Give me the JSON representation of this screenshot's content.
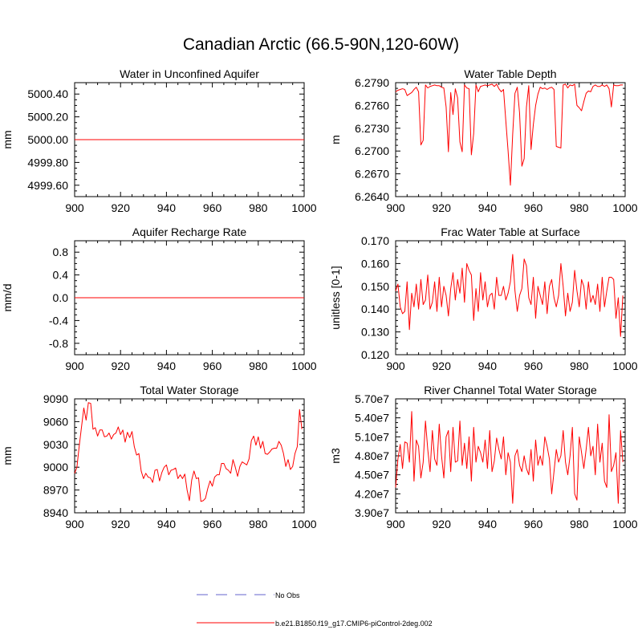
{
  "figure": {
    "title": "Canadian Arctic (66.5-90N,120-60W)"
  },
  "colors": {
    "series": "#ff0000",
    "obs": "#9999dd",
    "axis": "#000000"
  },
  "legend": {
    "items": [
      {
        "label": "No Obs",
        "style": "dashed",
        "color": "#9999dd"
      },
      {
        "label": "b.e21.B1850.f19_g17.CMIP6-piControl-2deg.002",
        "style": "solid",
        "color": "#ff0000"
      }
    ]
  },
  "chart_data": [
    {
      "type": "line",
      "title": "Water in Unconfined Aquifer",
      "ylabel": "mm",
      "xlabel": "",
      "xlim": [
        900,
        1000
      ],
      "ylim": [
        4999.5,
        5000.5
      ],
      "xticks": [
        "900",
        "920",
        "940",
        "960",
        "980",
        "1000"
      ],
      "yticks": [
        {
          "v": 4999.6,
          "label": "4999.60"
        },
        {
          "v": 4999.8,
          "label": "4999.80"
        },
        {
          "v": 5000.0,
          "label": "5000.00"
        },
        {
          "v": 5000.2,
          "label": "5000.20"
        },
        {
          "v": 5000.4,
          "label": "5000.40"
        }
      ],
      "series": [
        {
          "name": "b.e21.B1850.f19_g17.CMIP6-piControl-2deg.002",
          "x0": 900,
          "values": [
            5000,
            5000
          ],
          "x": [
            900,
            1000
          ]
        }
      ]
    },
    {
      "type": "line",
      "title": "Water Table Depth",
      "ylabel": "m",
      "xlabel": "",
      "xlim": [
        900,
        1000
      ],
      "ylim": [
        6.264,
        6.279
      ],
      "xticks": [
        "900",
        "920",
        "940",
        "960",
        "980",
        "1000"
      ],
      "yticks": [
        {
          "v": 6.264,
          "label": "6.2640"
        },
        {
          "v": 6.267,
          "label": "6.2670"
        },
        {
          "v": 6.27,
          "label": "6.2700"
        },
        {
          "v": 6.273,
          "label": "6.2730"
        },
        {
          "v": 6.276,
          "label": "6.2760"
        },
        {
          "v": 6.279,
          "label": "6.2790"
        }
      ],
      "series": [
        {
          "name": "b.e21.B1850.f19_g17.CMIP6-piControl-2deg.002",
          "x0": 900,
          "values": [
            6.2778,
            6.278,
            6.2781,
            6.2782,
            6.2781,
            6.2773,
            6.2775,
            6.2777,
            6.2781,
            6.2784,
            6.2778,
            6.2708,
            6.2714,
            6.2787,
            6.2783,
            6.2785,
            6.2786,
            6.2787,
            6.2786,
            6.2786,
            6.2784,
            6.2783,
            6.2758,
            6.2699,
            6.2777,
            6.2748,
            6.2782,
            6.277,
            6.2712,
            6.2699,
            6.2787,
            6.2783,
            6.2782,
            6.2695,
            6.2723,
            6.2787,
            6.2778,
            6.2785,
            6.2786,
            6.2787,
            6.2786,
            6.2787,
            6.2788,
            6.2785,
            6.2788,
            6.2782,
            6.2778,
            6.2781,
            6.274,
            6.27,
            6.2655,
            6.2722,
            6.2776,
            6.2784,
            6.275,
            6.268,
            6.269,
            6.2758,
            6.2786,
            6.2702,
            6.2735,
            6.276,
            6.2775,
            6.2784,
            6.2782,
            6.2783,
            6.2781,
            6.2783,
            6.2784,
            6.2781,
            6.2706,
            6.2705,
            6.2704,
            6.2787,
            6.2788,
            6.2783,
            6.2787,
            6.2786,
            6.2788,
            6.276,
            6.2757,
            6.2753,
            6.2765,
            6.2776,
            6.2779,
            6.2778,
            6.2785,
            6.2787,
            6.2785,
            6.2785,
            6.2787,
            6.2785,
            6.2787,
            6.2782,
            6.2758,
            6.2787,
            6.2786,
            6.2786,
            6.2787,
            6.2787
          ]
        }
      ]
    },
    {
      "type": "line",
      "title": "Aquifer Recharge Rate",
      "ylabel": "mm/d",
      "xlabel": "",
      "xlim": [
        900,
        1000
      ],
      "ylim": [
        -1.0,
        1.0
      ],
      "xticks": [
        "900",
        "920",
        "940",
        "960",
        "980",
        "1000"
      ],
      "yticks": [
        {
          "v": -0.8,
          "label": "-0.8"
        },
        {
          "v": -0.4,
          "label": "-0.4"
        },
        {
          "v": 0.0,
          "label": "0.0"
        },
        {
          "v": 0.4,
          "label": "0.4"
        },
        {
          "v": 0.8,
          "label": "0.8"
        }
      ],
      "series": [
        {
          "name": "b.e21.B1850.f19_g17.CMIP6-piControl-2deg.002",
          "values": [
            0,
            0
          ],
          "x": [
            900,
            1000
          ]
        }
      ]
    },
    {
      "type": "line",
      "title": "Frac Water Table at Surface",
      "ylabel": "unitless [0-1]",
      "xlabel": "",
      "xlim": [
        900,
        1000
      ],
      "ylim": [
        0.12,
        0.17
      ],
      "xticks": [
        "900",
        "920",
        "940",
        "960",
        "980",
        "1000"
      ],
      "yticks": [
        {
          "v": 0.12,
          "label": "0.120"
        },
        {
          "v": 0.13,
          "label": "0.130"
        },
        {
          "v": 0.14,
          "label": "0.140"
        },
        {
          "v": 0.15,
          "label": "0.150"
        },
        {
          "v": 0.16,
          "label": "0.160"
        },
        {
          "v": 0.17,
          "label": "0.170"
        }
      ],
      "series": [
        {
          "name": "b.e21.B1850.f19_g17.CMIP6-piControl-2deg.002",
          "x0": 900,
          "values": [
            0.148,
            0.151,
            0.141,
            0.138,
            0.139,
            0.152,
            0.131,
            0.147,
            0.141,
            0.151,
            0.14,
            0.153,
            0.142,
            0.144,
            0.155,
            0.14,
            0.143,
            0.152,
            0.139,
            0.154,
            0.141,
            0.15,
            0.146,
            0.137,
            0.149,
            0.156,
            0.144,
            0.153,
            0.147,
            0.158,
            0.143,
            0.16,
            0.157,
            0.155,
            0.135,
            0.149,
            0.139,
            0.156,
            0.144,
            0.152,
            0.141,
            0.146,
            0.147,
            0.14,
            0.154,
            0.146,
            0.146,
            0.15,
            0.144,
            0.147,
            0.152,
            0.164,
            0.148,
            0.139,
            0.146,
            0.149,
            0.162,
            0.159,
            0.145,
            0.142,
            0.154,
            0.136,
            0.15,
            0.146,
            0.142,
            0.152,
            0.138,
            0.15,
            0.153,
            0.145,
            0.141,
            0.146,
            0.16,
            0.15,
            0.137,
            0.147,
            0.139,
            0.143,
            0.157,
            0.148,
            0.141,
            0.153,
            0.15,
            0.14,
            0.152,
            0.143,
            0.146,
            0.142,
            0.151,
            0.139,
            0.154,
            0.141,
            0.148,
            0.154,
            0.154,
            0.153,
            0.136,
            0.145,
            0.128,
            0.146
          ]
        }
      ]
    },
    {
      "type": "line",
      "title": "Total Water Storage",
      "ylabel": "mm",
      "xlabel": "",
      "xlim": [
        900,
        1000
      ],
      "ylim": [
        8940,
        9090
      ],
      "xticks": [
        "900",
        "920",
        "940",
        "960",
        "980",
        "1000"
      ],
      "yticks": [
        {
          "v": 8940,
          "label": "8940"
        },
        {
          "v": 8970,
          "label": "8970"
        },
        {
          "v": 9000,
          "label": "9000"
        },
        {
          "v": 9030,
          "label": "9030"
        },
        {
          "v": 9060,
          "label": "9060"
        },
        {
          "v": 9090,
          "label": "9090"
        }
      ],
      "series": [
        {
          "name": "b.e21.B1850.f19_g17.CMIP6-piControl-2deg.002",
          "x0": 900,
          "values": [
            8992,
            9000,
            9028,
            9053,
            9078,
            9062,
            9085,
            9084,
            9050,
            9052,
            9041,
            9049,
            9049,
            9040,
            9041,
            9045,
            9037,
            9043,
            9045,
            9053,
            9043,
            9049,
            9033,
            9046,
            9039,
            9047,
            9027,
            9016,
            9018,
            8995,
            8985,
            8992,
            8987,
            8986,
            8980,
            8996,
            8997,
            8982,
            8993,
            9000,
            9003,
            8990,
            8996,
            8997,
            8999,
            8985,
            8990,
            8985,
            8991,
            8970,
            8956,
            8983,
            8995,
            8985,
            8986,
            8955,
            8956,
            8959,
            8972,
            8982,
            8975,
            8987,
            8990,
            8990,
            9005,
            9005,
            8998,
            8996,
            8992,
            9010,
            9000,
            8988,
            9001,
            9007,
            9005,
            9003,
            9011,
            9035,
            9041,
            9029,
            9040,
            9025,
            9034,
            9018,
            9017,
            9020,
            9024,
            9025,
            9025,
            9034,
            9029,
            9018,
            9001,
            9010,
            8997,
            9001,
            9018,
            9027,
            9076,
            9050
          ]
        }
      ]
    },
    {
      "type": "line",
      "title": "River Channel Total Water Storage",
      "ylabel": "m3",
      "xlabel": "",
      "xlim": [
        900,
        1000
      ],
      "ylim": [
        39000000.0,
        57000000.0
      ],
      "xticks": [
        "900",
        "920",
        "940",
        "960",
        "980",
        "1000"
      ],
      "yticks": [
        {
          "v": 39000000.0,
          "label": "3.90e7"
        },
        {
          "v": 42000000.0,
          "label": "4.20e7"
        },
        {
          "v": 45000000.0,
          "label": "4.50e7"
        },
        {
          "v": 48000000.0,
          "label": "4.80e7"
        },
        {
          "v": 51000000.0,
          "label": "5.10e7"
        },
        {
          "v": 54000000.0,
          "label": "5.40e7"
        },
        {
          "v": 57000000.0,
          "label": "5.70e7"
        }
      ],
      "series": [
        {
          "name": "b.e21.B1850.f19_g17.CMIP6-piControl-2deg.002",
          "x0": 900,
          "values": [
            43000000.0,
            47500000.0,
            49800000.0,
            46000000.0,
            50200000.0,
            50000000.0,
            47000000.0,
            55000000.0,
            44000000.0,
            50500000.0,
            49500000.0,
            44500000.0,
            47000000.0,
            53500000.0,
            49000000.0,
            45500000.0,
            52000000.0,
            47500000.0,
            46500000.0,
            53000000.0,
            48000000.0,
            44500000.0,
            51000000.0,
            52000000.0,
            45500000.0,
            52500000.0,
            47000000.0,
            47200000.0,
            53500000.0,
            46500000.0,
            50000000.0,
            46000000.0,
            51000000.0,
            44000000.0,
            52500000.0,
            47000000.0,
            49500000.0,
            48500000.0,
            47000000.0,
            50500000.0,
            46000000.0,
            52000000.0,
            45500000.0,
            47200000.0,
            50800000.0,
            49000000.0,
            47500000.0,
            51000000.0,
            45000000.0,
            48500000.0,
            47000000.0,
            40500000.0,
            48000000.0,
            49000000.0,
            46500000.0,
            45500000.0,
            48000000.0,
            46000000.0,
            45000000.0,
            49000000.0,
            44000000.0,
            50500000.0,
            46500000.0,
            48000000.0,
            46500000.0,
            51000000.0,
            49500000.0,
            47500000.0,
            42000000.0,
            45500000.0,
            49000000.0,
            47000000.0,
            48000000.0,
            52000000.0,
            47000000.0,
            45000000.0,
            48000000.0,
            52500000.0,
            42000000.0,
            41000000.0,
            51000000.0,
            48500000.0,
            46000000.0,
            49000000.0,
            52500000.0,
            48000000.0,
            49500000.0,
            45000000.0,
            53000000.0,
            47000000.0,
            50000000.0,
            44000000.0,
            43000000.0,
            54500000.0,
            45500000.0,
            46500000.0,
            48500000.0,
            40500000.0,
            52000000.0,
            47000000.0
          ]
        }
      ]
    }
  ]
}
